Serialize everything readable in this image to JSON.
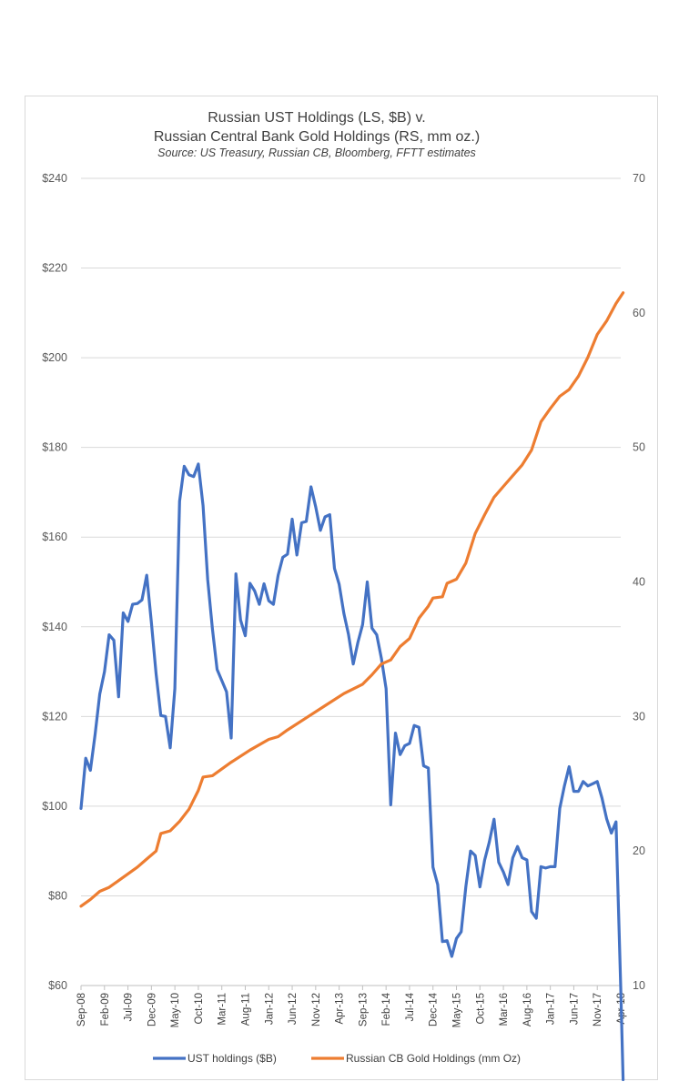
{
  "chart_data": {
    "type": "line",
    "title": "Russian UST Holdings (LS, $B) v.",
    "subtitle": "Russian Central Bank Gold Holdings (RS, mm oz.)",
    "source": "Source:  US Treasury, Russian CB, Bloomberg, FFTT estimates",
    "y_left": {
      "range": [
        60,
        240
      ],
      "ticks": [
        60,
        80,
        100,
        120,
        140,
        160,
        180,
        200,
        220,
        240
      ],
      "tick_labels": [
        "$60",
        "$80",
        "$100",
        "$120",
        "$140",
        "$160",
        "$180",
        "$200",
        "$220",
        "$240"
      ]
    },
    "y_right": {
      "range": [
        10,
        70
      ],
      "ticks": [
        10,
        20,
        30,
        40,
        50,
        60,
        70
      ],
      "tick_labels": [
        "10",
        "20",
        "30",
        "40",
        "50",
        "60",
        "70"
      ]
    },
    "x_tick_labels": [
      "Sep-08",
      "Feb-09",
      "Jul-09",
      "Dec-09",
      "May-10",
      "Oct-10",
      "Mar-11",
      "Aug-11",
      "Jan-12",
      "Jun-12",
      "Nov-12",
      "Apr-13",
      "Sep-13",
      "Feb-14",
      "Jul-14",
      "Dec-14",
      "May-15",
      "Oct-15",
      "Mar-16",
      "Aug-16",
      "Jan-17",
      "Jun-17",
      "Nov-17",
      "Apr-18"
    ],
    "grid": true,
    "legend_position": "bottom",
    "series": [
      {
        "name": "UST holdings ($B)",
        "axis": "left",
        "color": "#4472c4",
        "points": [
          [
            0,
            99.5
          ],
          [
            1,
            110.7
          ],
          [
            2,
            108
          ],
          [
            3,
            116
          ],
          [
            4,
            125
          ],
          [
            5,
            130
          ],
          [
            6,
            138.2
          ],
          [
            7,
            137
          ],
          [
            8,
            124.4
          ],
          [
            9,
            143.1
          ],
          [
            10,
            141.2
          ],
          [
            11,
            145
          ],
          [
            12,
            145.2
          ],
          [
            13,
            146
          ],
          [
            14,
            151.5
          ],
          [
            15,
            141
          ],
          [
            16,
            129.5
          ],
          [
            17,
            120.2
          ],
          [
            18,
            120
          ],
          [
            19,
            113
          ],
          [
            20,
            126.2
          ],
          [
            21,
            168
          ],
          [
            22,
            175.8
          ],
          [
            23,
            173.9
          ],
          [
            24,
            173.5
          ],
          [
            25,
            176.3
          ],
          [
            26,
            167
          ],
          [
            27,
            150.5
          ],
          [
            28,
            139.5
          ],
          [
            29,
            130.5
          ],
          [
            30,
            128
          ],
          [
            31,
            125.5
          ],
          [
            32,
            115.2
          ],
          [
            33,
            151.8
          ],
          [
            34,
            141.5
          ],
          [
            35,
            138
          ],
          [
            36,
            149.7
          ],
          [
            37,
            148
          ],
          [
            38,
            145
          ],
          [
            39,
            149.6
          ],
          [
            40,
            145.8
          ],
          [
            41,
            145
          ],
          [
            42,
            151.5
          ],
          [
            43,
            155.5
          ],
          [
            44,
            156.2
          ],
          [
            45,
            164
          ],
          [
            46,
            156
          ],
          [
            47,
            163.2
          ],
          [
            48,
            163.5
          ],
          [
            49,
            171.2
          ],
          [
            50,
            166.8
          ],
          [
            51,
            161.5
          ],
          [
            52,
            164.5
          ],
          [
            53,
            165
          ],
          [
            54,
            153
          ],
          [
            55,
            149.5
          ],
          [
            56,
            143
          ],
          [
            57,
            138.3
          ],
          [
            58,
            131.7
          ],
          [
            59,
            136.5
          ],
          [
            60,
            140.5
          ],
          [
            61,
            150
          ],
          [
            62,
            139.7
          ],
          [
            63,
            138.2
          ],
          [
            64,
            133
          ],
          [
            65,
            126.2
          ],
          [
            66,
            100.3
          ],
          [
            67,
            116.3
          ],
          [
            68,
            111.5
          ],
          [
            69,
            113.5
          ],
          [
            70,
            114
          ],
          [
            71,
            118
          ],
          [
            72,
            117.6
          ],
          [
            73,
            109
          ],
          [
            74,
            108.5
          ],
          [
            75,
            86.4
          ],
          [
            76,
            82.5
          ],
          [
            77,
            69.8
          ],
          [
            78,
            70
          ],
          [
            79,
            66.5
          ],
          [
            80,
            70.5
          ],
          [
            81,
            72
          ],
          [
            82,
            82
          ],
          [
            83,
            90
          ],
          [
            84,
            89
          ],
          [
            85,
            82
          ],
          [
            86,
            88
          ],
          [
            87,
            92
          ],
          [
            88,
            97.1
          ],
          [
            89,
            87.5
          ],
          [
            90,
            85.3
          ],
          [
            91,
            82.5
          ],
          [
            92,
            88.5
          ],
          [
            93,
            91
          ],
          [
            94,
            88.5
          ],
          [
            95,
            88
          ],
          [
            96,
            76.5
          ],
          [
            97,
            75
          ],
          [
            98,
            86.5
          ],
          [
            99,
            86.2
          ],
          [
            100,
            86.5
          ],
          [
            101,
            86.5
          ],
          [
            102,
            99.5
          ],
          [
            103,
            104.5
          ],
          [
            104,
            108.8
          ],
          [
            105,
            103.3
          ],
          [
            106,
            103.3
          ],
          [
            107,
            105.5
          ],
          [
            108,
            104.5
          ],
          [
            109,
            105
          ],
          [
            110,
            105.5
          ],
          [
            111,
            101.8
          ],
          [
            112,
            97.2
          ],
          [
            113,
            94
          ],
          [
            114,
            96.5
          ],
          [
            115,
            59.5
          ],
          [
            115.5,
            39
          ]
        ]
      },
      {
        "name": "Russian CB Gold Holdings (mm Oz)",
        "axis": "right",
        "color": "#ed7d31",
        "points": [
          [
            0,
            15.9
          ],
          [
            2,
            16.4
          ],
          [
            4,
            17
          ],
          [
            6,
            17.3
          ],
          [
            8,
            17.8
          ],
          [
            10,
            18.3
          ],
          [
            12,
            18.8
          ],
          [
            14,
            19.4
          ],
          [
            16,
            20
          ],
          [
            17,
            21.3
          ],
          [
            19,
            21.5
          ],
          [
            21,
            22.2
          ],
          [
            23,
            23.1
          ],
          [
            25,
            24.5
          ],
          [
            26,
            25.5
          ],
          [
            28,
            25.6
          ],
          [
            32,
            26.6
          ],
          [
            36,
            27.5
          ],
          [
            40,
            28.3
          ],
          [
            42,
            28.5
          ],
          [
            44,
            29
          ],
          [
            48,
            29.9
          ],
          [
            52,
            30.8
          ],
          [
            56,
            31.7
          ],
          [
            60,
            32.4
          ],
          [
            62,
            33.1
          ],
          [
            64,
            33.9
          ],
          [
            66,
            34.2
          ],
          [
            68,
            35.2
          ],
          [
            70,
            35.8
          ],
          [
            72,
            37.3
          ],
          [
            74,
            38.2
          ],
          [
            75,
            38.8
          ],
          [
            77,
            38.9
          ],
          [
            78,
            39.9
          ],
          [
            80,
            40.2
          ],
          [
            82,
            41.4
          ],
          [
            84,
            43.6
          ],
          [
            86,
            45
          ],
          [
            88,
            46.3
          ],
          [
            90,
            47.1
          ],
          [
            92,
            47.9
          ],
          [
            94,
            48.7
          ],
          [
            96,
            49.8
          ],
          [
            98,
            51.9
          ],
          [
            100,
            52.9
          ],
          [
            102,
            53.8
          ],
          [
            104,
            54.3
          ],
          [
            106,
            55.3
          ],
          [
            108,
            56.7
          ],
          [
            110,
            58.4
          ],
          [
            112,
            59.4
          ],
          [
            114,
            60.7
          ],
          [
            115.5,
            61.5
          ]
        ]
      }
    ]
  }
}
